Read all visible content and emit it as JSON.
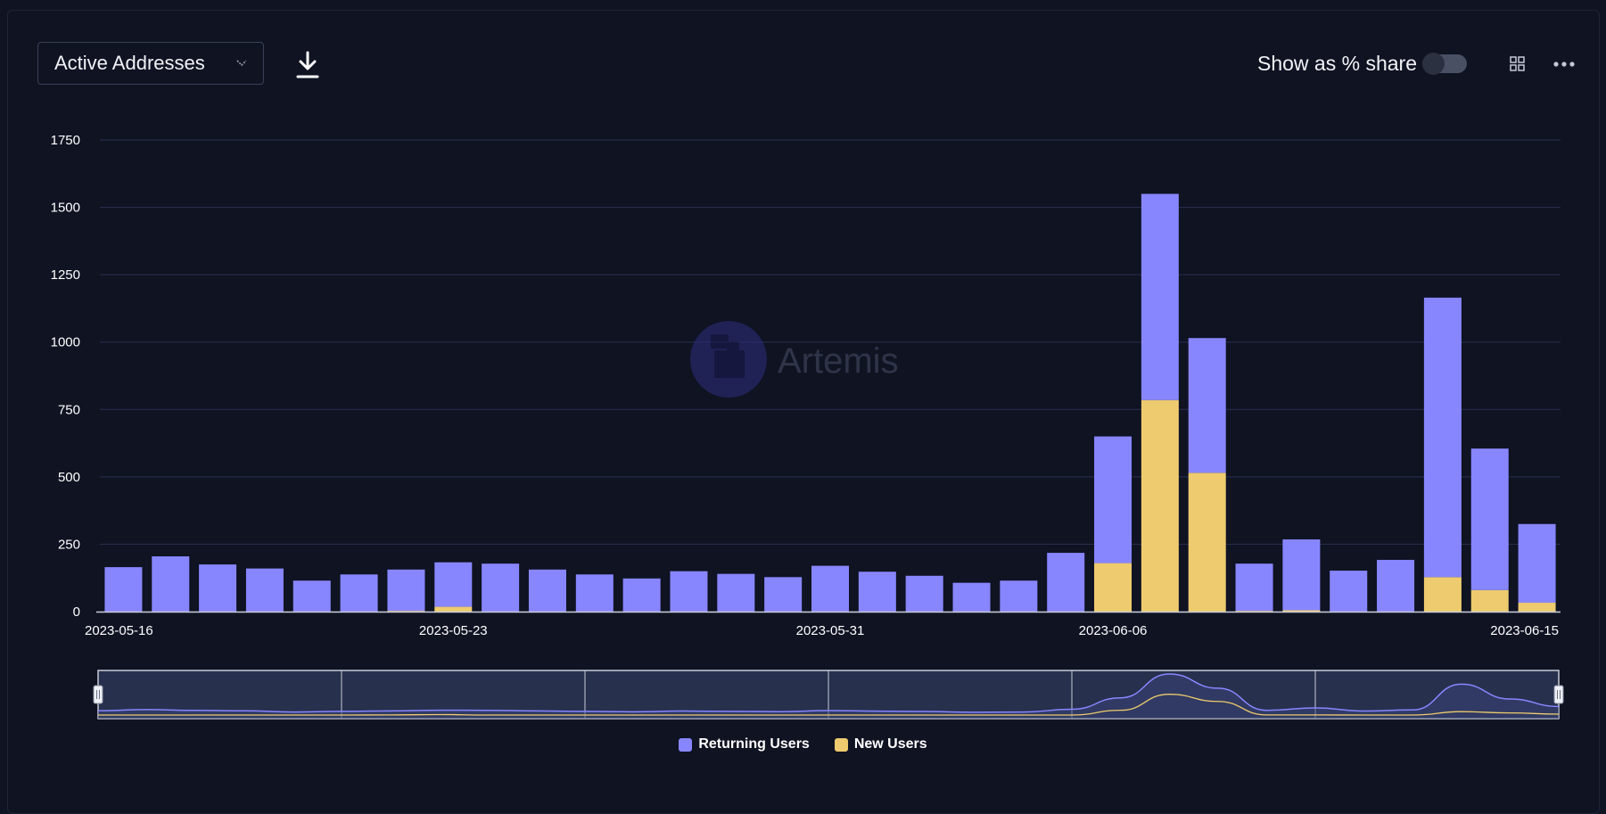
{
  "header": {
    "metric_label": "Active Addresses",
    "share_toggle_label": "Show as % share",
    "share_toggle_on": false
  },
  "watermark": "Artemis",
  "colors": {
    "returning": "#8886ff",
    "new": "#eecb6e",
    "background": "#0f1322",
    "grid": "#2a3050"
  },
  "chart_data": {
    "type": "bar",
    "stacked": true,
    "x": [
      "2023-05-16",
      "2023-05-17",
      "2023-05-18",
      "2023-05-19",
      "2023-05-20",
      "2023-05-21",
      "2023-05-22",
      "2023-05-23",
      "2023-05-24",
      "2023-05-25",
      "2023-05-26",
      "2023-05-27",
      "2023-05-28",
      "2023-05-29",
      "2023-05-30",
      "2023-05-31",
      "2023-06-01",
      "2023-06-02",
      "2023-06-03",
      "2023-06-04",
      "2023-06-05",
      "2023-06-06",
      "2023-06-07",
      "2023-06-08",
      "2023-06-09",
      "2023-06-10",
      "2023-06-11",
      "2023-06-12",
      "2023-06-13",
      "2023-06-14",
      "2023-06-15"
    ],
    "xtick_labels": [
      "2023-05-16",
      "2023-05-23",
      "2023-05-31",
      "2023-06-06",
      "2023-06-15"
    ],
    "series": [
      {
        "name": "New Users",
        "values": [
          0,
          0,
          0,
          0,
          0,
          0,
          3,
          18,
          0,
          0,
          0,
          0,
          0,
          0,
          0,
          0,
          0,
          0,
          0,
          0,
          0,
          180,
          785,
          515,
          3,
          5,
          0,
          0,
          128,
          80,
          33
        ]
      },
      {
        "name": "Returning Users",
        "values": [
          165,
          205,
          175,
          160,
          115,
          138,
          153,
          165,
          178,
          156,
          138,
          123,
          150,
          140,
          128,
          170,
          148,
          133,
          107,
          115,
          218,
          470,
          765,
          500,
          175,
          263,
          152,
          192,
          1037,
          525,
          292
        ]
      }
    ],
    "yticks": [
      0,
      250,
      500,
      750,
      1000,
      1250,
      1500,
      1750
    ],
    "ylim": [
      0,
      1750
    ],
    "legend": [
      "Returning Users",
      "New Users"
    ],
    "legend_position": "bottom-center",
    "grid": true,
    "navigator": true
  }
}
